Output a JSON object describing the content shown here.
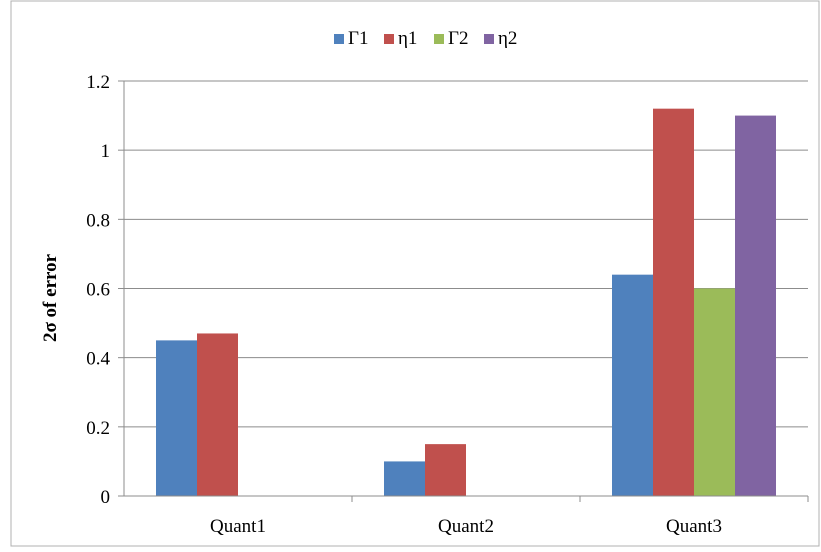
{
  "chart_data": {
    "type": "bar",
    "categories": [
      "Quant1",
      "Quant2",
      "Quant3"
    ],
    "series": [
      {
        "name": "Γ1",
        "color": "#4F81BD",
        "values": [
          0.45,
          0.1,
          0.64
        ]
      },
      {
        "name": "η1",
        "color": "#C0504D",
        "values": [
          0.47,
          0.15,
          1.12
        ]
      },
      {
        "name": "Γ2",
        "color": "#9BBB59",
        "values": [
          null,
          null,
          0.6
        ]
      },
      {
        "name": "η2",
        "color": "#8064A2",
        "values": [
          null,
          null,
          1.1
        ]
      }
    ],
    "ylabel": "2σ of error",
    "ylim": [
      0,
      1.2
    ],
    "yticks": [
      "0",
      "0.2",
      "0.4",
      "0.6",
      "0.8",
      "1",
      "1.2"
    ],
    "grid": "horizontal",
    "legend": "top-center"
  }
}
